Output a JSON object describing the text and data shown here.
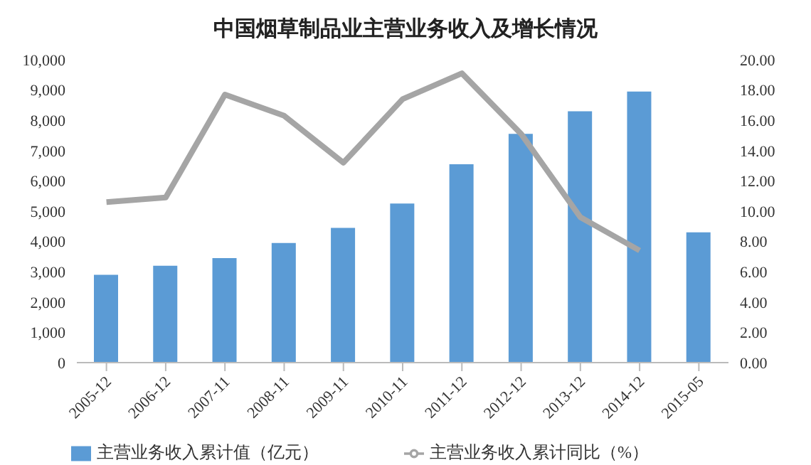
{
  "chart_data": {
    "type": "bar",
    "title": "中国烟草制品业主营业务收入及增长情况",
    "categories": [
      "2005-12",
      "2006-12",
      "2007-11",
      "2008-11",
      "2009-11",
      "2010-11",
      "2011-12",
      "2012-12",
      "2013-12",
      "2014-12",
      "2015-05"
    ],
    "series": [
      {
        "name": "主营业务收入累计值（亿元）",
        "color": "#5b9bd5",
        "values": [
          2900,
          3200,
          3450,
          3950,
          4450,
          5250,
          6550,
          7550,
          8300,
          8950,
          4300
        ]
      },
      {
        "name": "主营业务收入累计同比（%）",
        "type": "line",
        "axis": "y2",
        "color": "#a5a5a5",
        "values": [
          10.6,
          10.9,
          17.7,
          16.3,
          13.2,
          17.4,
          19.1,
          15.1,
          9.6,
          7.4,
          null
        ]
      }
    ],
    "ylim": [
      0,
      10000
    ],
    "yticks": [
      {
        "value": 0,
        "label": "0"
      },
      {
        "value": 1000,
        "label": "1,000"
      },
      {
        "value": 2000,
        "label": "2,000"
      },
      {
        "value": 3000,
        "label": "3,000"
      },
      {
        "value": 4000,
        "label": "4,000"
      },
      {
        "value": 5000,
        "label": "5,000"
      },
      {
        "value": 6000,
        "label": "6,000"
      },
      {
        "value": 7000,
        "label": "7,000"
      },
      {
        "value": 8000,
        "label": "8,000"
      },
      {
        "value": 9000,
        "label": "9,000"
      },
      {
        "value": 10000,
        "label": "10,000"
      }
    ],
    "y2lim": [
      0,
      20
    ],
    "y2ticks": [
      {
        "value": 0,
        "label": "0.00"
      },
      {
        "value": 2,
        "label": "2.00"
      },
      {
        "value": 4,
        "label": "4.00"
      },
      {
        "value": 6,
        "label": "6.00"
      },
      {
        "value": 8,
        "label": "8.00"
      },
      {
        "value": 10,
        "label": "10.00"
      },
      {
        "value": 12,
        "label": "12.00"
      },
      {
        "value": 14,
        "label": "14.00"
      },
      {
        "value": 16,
        "label": "16.00"
      },
      {
        "value": 18,
        "label": "18.00"
      },
      {
        "value": 20,
        "label": "20.00"
      }
    ],
    "grid": false,
    "legend": "bottom",
    "marker": "none",
    "line_style": "solid"
  }
}
